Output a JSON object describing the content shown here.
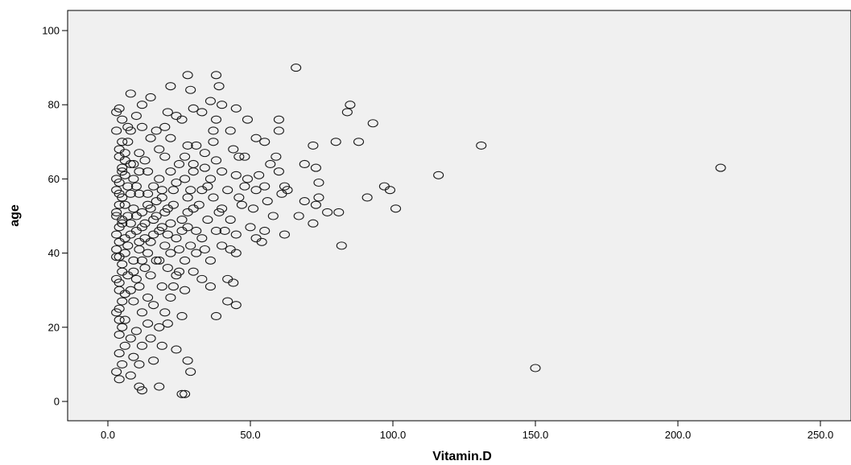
{
  "chart_data": {
    "type": "scatter",
    "title": "",
    "xlabel": "Vitamin.D",
    "ylabel": "age",
    "xlim": [
      -12,
      260
    ],
    "ylim": [
      -5,
      105
    ],
    "x_ticks": [
      0,
      50,
      100,
      150,
      200,
      250
    ],
    "x_tick_labels": [
      "0.0",
      "50.0",
      "100.0",
      "150.0",
      "200.0",
      "250.0"
    ],
    "y_ticks": [
      0,
      20,
      40,
      60,
      80,
      100
    ],
    "y_tick_labels": [
      "0",
      "20",
      "40",
      "60",
      "80",
      "100"
    ],
    "grid": false,
    "plot_background": "#f0f0f0",
    "marker": "open-circle",
    "points": [
      [
        66,
        90
      ],
      [
        28,
        88
      ],
      [
        38,
        88
      ],
      [
        8,
        83
      ],
      [
        22,
        85
      ],
      [
        39,
        85
      ],
      [
        29,
        84
      ],
      [
        12,
        80
      ],
      [
        15,
        82
      ],
      [
        4,
        79
      ],
      [
        30,
        79
      ],
      [
        36,
        81
      ],
      [
        40,
        80
      ],
      [
        45,
        79
      ],
      [
        21,
        78
      ],
      [
        3,
        78
      ],
      [
        10,
        77
      ],
      [
        24,
        77
      ],
      [
        33,
        78
      ],
      [
        26,
        76
      ],
      [
        38,
        76
      ],
      [
        49,
        76
      ],
      [
        60,
        76
      ],
      [
        85,
        80
      ],
      [
        84,
        78
      ],
      [
        93,
        75
      ],
      [
        5,
        76
      ],
      [
        12,
        74
      ],
      [
        20,
        74
      ],
      [
        8,
        73
      ],
      [
        17,
        73
      ],
      [
        37,
        73
      ],
      [
        43,
        73
      ],
      [
        60,
        73
      ],
      [
        7,
        70
      ],
      [
        15,
        71
      ],
      [
        22,
        71
      ],
      [
        28,
        69
      ],
      [
        37,
        70
      ],
      [
        52,
        71
      ],
      [
        55,
        70
      ],
      [
        72,
        69
      ],
      [
        80,
        70
      ],
      [
        88,
        70
      ],
      [
        131,
        69
      ],
      [
        4,
        68
      ],
      [
        18,
        68
      ],
      [
        31,
        69
      ],
      [
        44,
        68
      ],
      [
        11,
        67
      ],
      [
        20,
        66
      ],
      [
        34,
        67
      ],
      [
        46,
        66
      ],
      [
        59,
        66
      ],
      [
        6,
        65
      ],
      [
        13,
        65
      ],
      [
        25,
        64
      ],
      [
        38,
        65
      ],
      [
        48,
        66
      ],
      [
        57,
        64
      ],
      [
        69,
        64
      ],
      [
        73,
        63
      ],
      [
        215,
        63
      ],
      [
        5,
        62
      ],
      [
        14,
        62
      ],
      [
        22,
        62
      ],
      [
        30,
        62
      ],
      [
        40,
        62
      ],
      [
        45,
        61
      ],
      [
        53,
        61
      ],
      [
        60,
        62
      ],
      [
        116,
        61
      ],
      [
        9,
        60
      ],
      [
        18,
        60
      ],
      [
        27,
        60
      ],
      [
        36,
        60
      ],
      [
        49,
        60
      ],
      [
        74,
        59
      ],
      [
        97,
        58
      ],
      [
        99,
        57
      ],
      [
        55,
        58
      ],
      [
        62,
        58
      ],
      [
        63,
        57
      ],
      [
        7,
        58
      ],
      [
        16,
        58
      ],
      [
        23,
        57
      ],
      [
        33,
        57
      ],
      [
        42,
        57
      ],
      [
        52,
        57
      ],
      [
        61,
        56
      ],
      [
        91,
        55
      ],
      [
        74,
        55
      ],
      [
        4,
        56
      ],
      [
        11,
        56
      ],
      [
        19,
        55
      ],
      [
        28,
        55
      ],
      [
        37,
        55
      ],
      [
        46,
        55
      ],
      [
        56,
        54
      ],
      [
        69,
        54
      ],
      [
        73,
        53
      ],
      [
        101,
        52
      ],
      [
        6,
        53
      ],
      [
        14,
        53
      ],
      [
        21,
        52
      ],
      [
        30,
        52
      ],
      [
        40,
        52
      ],
      [
        51,
        52
      ],
      [
        58,
        50
      ],
      [
        67,
        50
      ],
      [
        77,
        51
      ],
      [
        81,
        51
      ],
      [
        3,
        50
      ],
      [
        10,
        50
      ],
      [
        17,
        50
      ],
      [
        26,
        49
      ],
      [
        35,
        49
      ],
      [
        43,
        49
      ],
      [
        72,
        48
      ],
      [
        5,
        48
      ],
      [
        12,
        47
      ],
      [
        19,
        47
      ],
      [
        28,
        47
      ],
      [
        38,
        46
      ],
      [
        50,
        47
      ],
      [
        55,
        46
      ],
      [
        62,
        45
      ],
      [
        8,
        45
      ],
      [
        16,
        45
      ],
      [
        24,
        44
      ],
      [
        33,
        44
      ],
      [
        45,
        45
      ],
      [
        52,
        44
      ],
      [
        4,
        43
      ],
      [
        11,
        43
      ],
      [
        20,
        42
      ],
      [
        29,
        42
      ],
      [
        40,
        42
      ],
      [
        54,
        43
      ],
      [
        82,
        42
      ],
      [
        6,
        40
      ],
      [
        14,
        40
      ],
      [
        22,
        40
      ],
      [
        31,
        40
      ],
      [
        43,
        41
      ],
      [
        45,
        40
      ],
      [
        3,
        39
      ],
      [
        9,
        38
      ],
      [
        18,
        38
      ],
      [
        27,
        38
      ],
      [
        36,
        38
      ],
      [
        5,
        37
      ],
      [
        13,
        36
      ],
      [
        21,
        36
      ],
      [
        30,
        35
      ],
      [
        7,
        34
      ],
      [
        15,
        34
      ],
      [
        24,
        34
      ],
      [
        33,
        33
      ],
      [
        42,
        33
      ],
      [
        44,
        32
      ],
      [
        4,
        32
      ],
      [
        11,
        31
      ],
      [
        19,
        31
      ],
      [
        27,
        30
      ],
      [
        36,
        31
      ],
      [
        6,
        29
      ],
      [
        14,
        28
      ],
      [
        22,
        28
      ],
      [
        9,
        27
      ],
      [
        16,
        26
      ],
      [
        42,
        27
      ],
      [
        45,
        26
      ],
      [
        4,
        25
      ],
      [
        12,
        24
      ],
      [
        20,
        24
      ],
      [
        26,
        23
      ],
      [
        38,
        23
      ],
      [
        6,
        22
      ],
      [
        14,
        21
      ],
      [
        21,
        21
      ],
      [
        5,
        20
      ],
      [
        10,
        19
      ],
      [
        18,
        20
      ],
      [
        4,
        18
      ],
      [
        8,
        17
      ],
      [
        15,
        17
      ],
      [
        6,
        15
      ],
      [
        12,
        15
      ],
      [
        19,
        15
      ],
      [
        24,
        14
      ],
      [
        4,
        13
      ],
      [
        9,
        12
      ],
      [
        16,
        11
      ],
      [
        5,
        10
      ],
      [
        11,
        10
      ],
      [
        28,
        11
      ],
      [
        3,
        8
      ],
      [
        8,
        7
      ],
      [
        29,
        8
      ],
      [
        150,
        9
      ],
      [
        4,
        6
      ],
      [
        11,
        4
      ],
      [
        12,
        3
      ],
      [
        18,
        4
      ],
      [
        26,
        2
      ],
      [
        27,
        2
      ],
      [
        3,
        45
      ],
      [
        4,
        47
      ],
      [
        5,
        49
      ],
      [
        3,
        51
      ],
      [
        4,
        53
      ],
      [
        5,
        55
      ],
      [
        3,
        57
      ],
      [
        4,
        59
      ],
      [
        3,
        41
      ],
      [
        4,
        39
      ],
      [
        5,
        35
      ],
      [
        3,
        33
      ],
      [
        4,
        30
      ],
      [
        5,
        27
      ],
      [
        3,
        24
      ],
      [
        4,
        22
      ],
      [
        6,
        61
      ],
      [
        5,
        63
      ],
      [
        7,
        50
      ],
      [
        6,
        44
      ],
      [
        7,
        42
      ],
      [
        8,
        48
      ],
      [
        9,
        52
      ],
      [
        8,
        56
      ],
      [
        9,
        35
      ],
      [
        10,
        33
      ],
      [
        8,
        30
      ],
      [
        10,
        58
      ],
      [
        11,
        62
      ],
      [
        9,
        64
      ],
      [
        10,
        46
      ],
      [
        12,
        51
      ],
      [
        13,
        48
      ],
      [
        11,
        41
      ],
      [
        12,
        38
      ],
      [
        13,
        44
      ],
      [
        15,
        52
      ],
      [
        14,
        56
      ],
      [
        16,
        49
      ],
      [
        17,
        54
      ],
      [
        15,
        43
      ],
      [
        18,
        46
      ],
      [
        20,
        51
      ],
      [
        19,
        57
      ],
      [
        17,
        38
      ],
      [
        21,
        45
      ],
      [
        22,
        48
      ],
      [
        23,
        53
      ],
      [
        24,
        59
      ],
      [
        25,
        41
      ],
      [
        26,
        46
      ],
      [
        23,
        31
      ],
      [
        25,
        35
      ],
      [
        28,
        51
      ],
      [
        29,
        57
      ],
      [
        31,
        46
      ],
      [
        32,
        53
      ],
      [
        34,
        41
      ],
      [
        35,
        58
      ],
      [
        30,
        64
      ],
      [
        27,
        66
      ],
      [
        39,
        51
      ],
      [
        41,
        46
      ],
      [
        34,
        63
      ],
      [
        47,
        53
      ],
      [
        48,
        58
      ],
      [
        3,
        60
      ],
      [
        4,
        66
      ],
      [
        5,
        70
      ],
      [
        3,
        73
      ],
      [
        7,
        74
      ],
      [
        8,
        64
      ],
      [
        6,
        67
      ]
    ]
  }
}
